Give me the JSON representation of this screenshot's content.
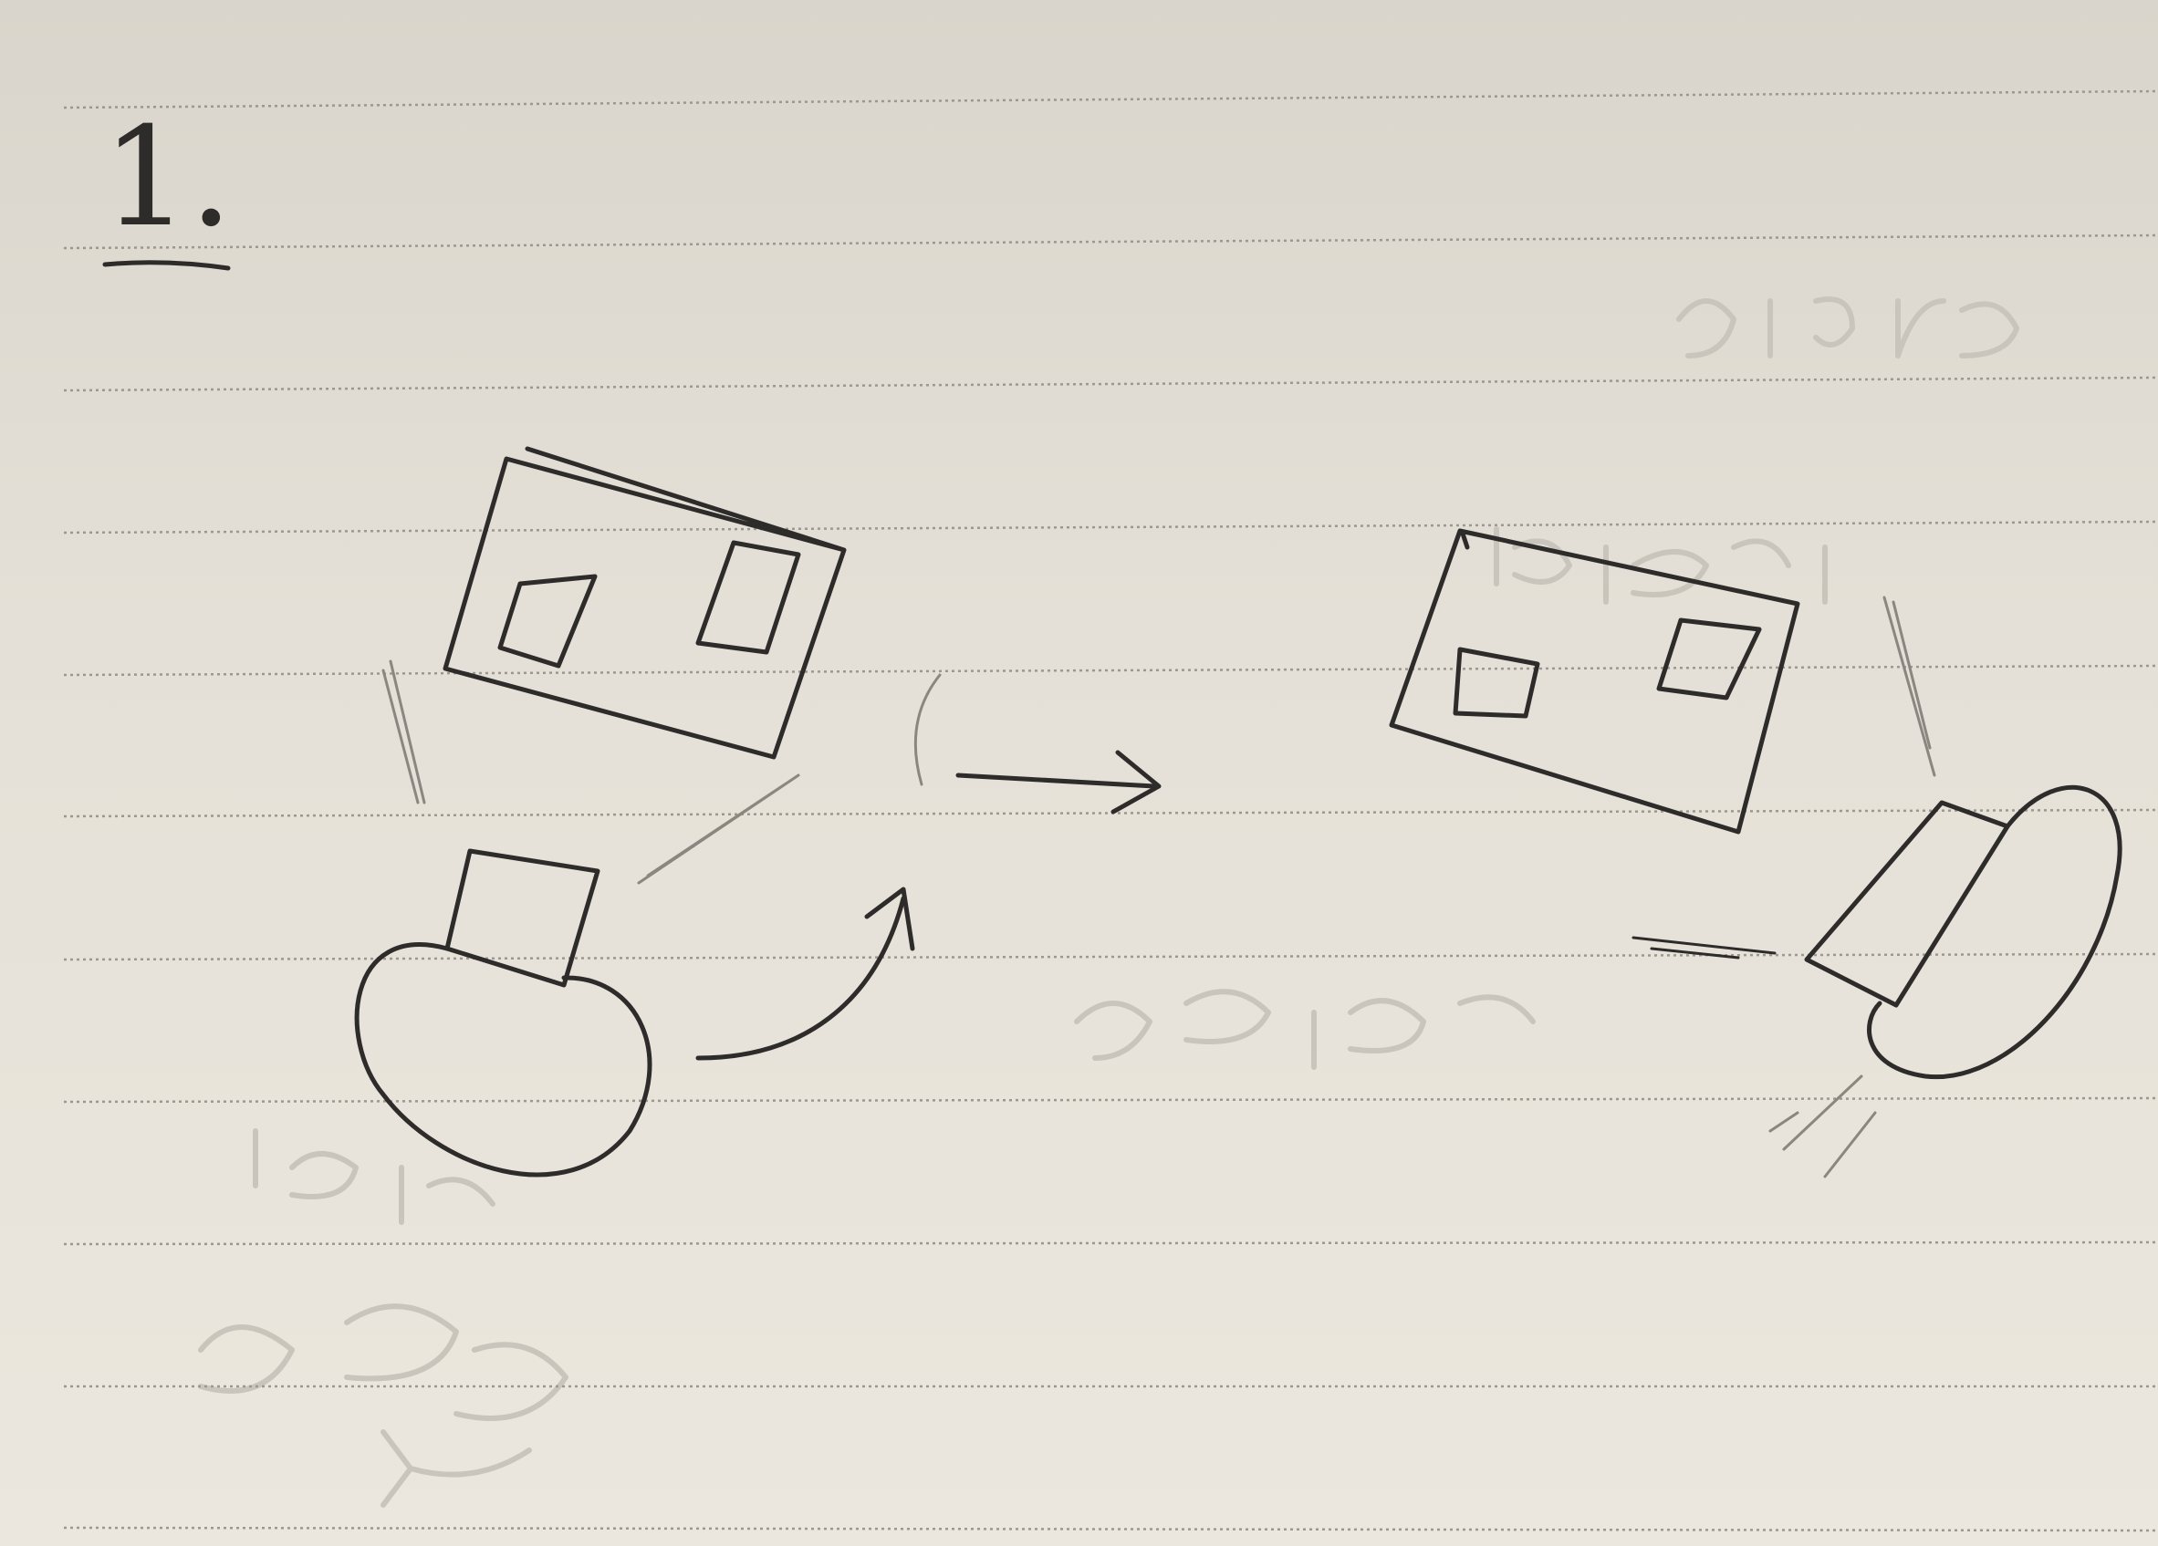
{
  "page": {
    "number": "1.",
    "colors": {
      "paper": "#e6e2d9",
      "ink": "#2e2c2a",
      "rule": "#9c9890",
      "bleed_through": "#c9c5bc"
    }
  },
  "sketch": {
    "before": {
      "screen": "screen-with-two-windows",
      "person": "person-facing-screen"
    },
    "transition": "arrow-right",
    "after": {
      "screen": "screen-with-two-windows",
      "person": "person-turned-sideways"
    }
  }
}
